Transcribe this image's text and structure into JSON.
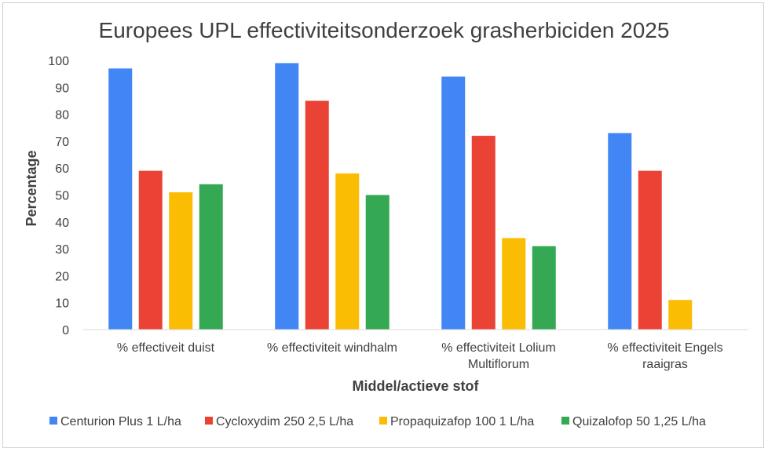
{
  "chart_data": {
    "type": "bar",
    "title": "Europees UPL effectiviteitsonderzoek grasherbiciden 2025",
    "xlabel": "Middel/actieve stof",
    "ylabel": "Percentage",
    "ylim": [
      0,
      100
    ],
    "yticks": [
      "0",
      "10",
      "20",
      "30",
      "40",
      "50",
      "60",
      "70",
      "80",
      "90",
      "100"
    ],
    "grid": false,
    "legend_position": "bottom",
    "categories": [
      [
        "% effectiveit duist"
      ],
      [
        "% effectiviteit windhalm"
      ],
      [
        "% effectiviteit Lolium",
        "Multiflorum"
      ],
      [
        "% effectiviteit Engels",
        "raaigras"
      ]
    ],
    "series": [
      {
        "name": "Centurion Plus 1 L/ha",
        "color": "#4285f4",
        "values": [
          97,
          99,
          94,
          73
        ]
      },
      {
        "name": "Cycloxydim 250 2,5 L/ha",
        "color": "#ea4335",
        "values": [
          59,
          85,
          72,
          59
        ]
      },
      {
        "name": "Propaquizafop 100 1 L/ha",
        "color": "#fbbc04",
        "values": [
          51,
          58,
          34,
          11
        ]
      },
      {
        "name": "Quizalofop 50 1,25 L/ha",
        "color": "#34a853",
        "values": [
          54,
          50,
          31,
          null
        ]
      }
    ]
  }
}
